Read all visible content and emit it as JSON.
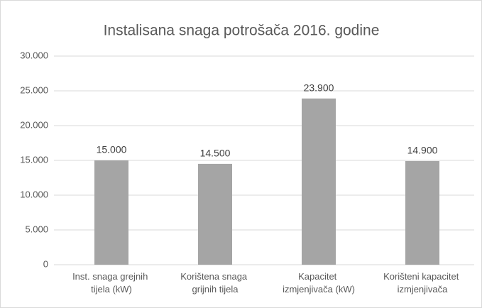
{
  "chart_data": {
    "type": "bar",
    "title": "Instalisana snaga potrošača 2016. godine",
    "categories": [
      "Inst. snaga grejnih tijela (kW)",
      "Korištena snaga grijnih tijela",
      "Kapacitet izmjenjivača (kW)",
      "Korišteni kapacitet izmjenjivača"
    ],
    "values": [
      15000,
      14500,
      23900,
      14900
    ],
    "value_labels": [
      "15.000",
      "14.500",
      "23.900",
      "14.900"
    ],
    "color": "#a5a5a5",
    "ylim": [
      0,
      30000
    ],
    "yticks": [
      0,
      {
        "value": 5000,
        "label": "5.000"
      },
      {
        "value": 10000,
        "label": "10.000"
      },
      {
        "value": 15000,
        "label": "15.000"
      },
      {
        "value": 20000,
        "label": "20.000"
      },
      {
        "value": 25000,
        "label": "25.000"
      },
      {
        "value": 30000,
        "label": "30.000"
      }
    ],
    "grid": true
  }
}
